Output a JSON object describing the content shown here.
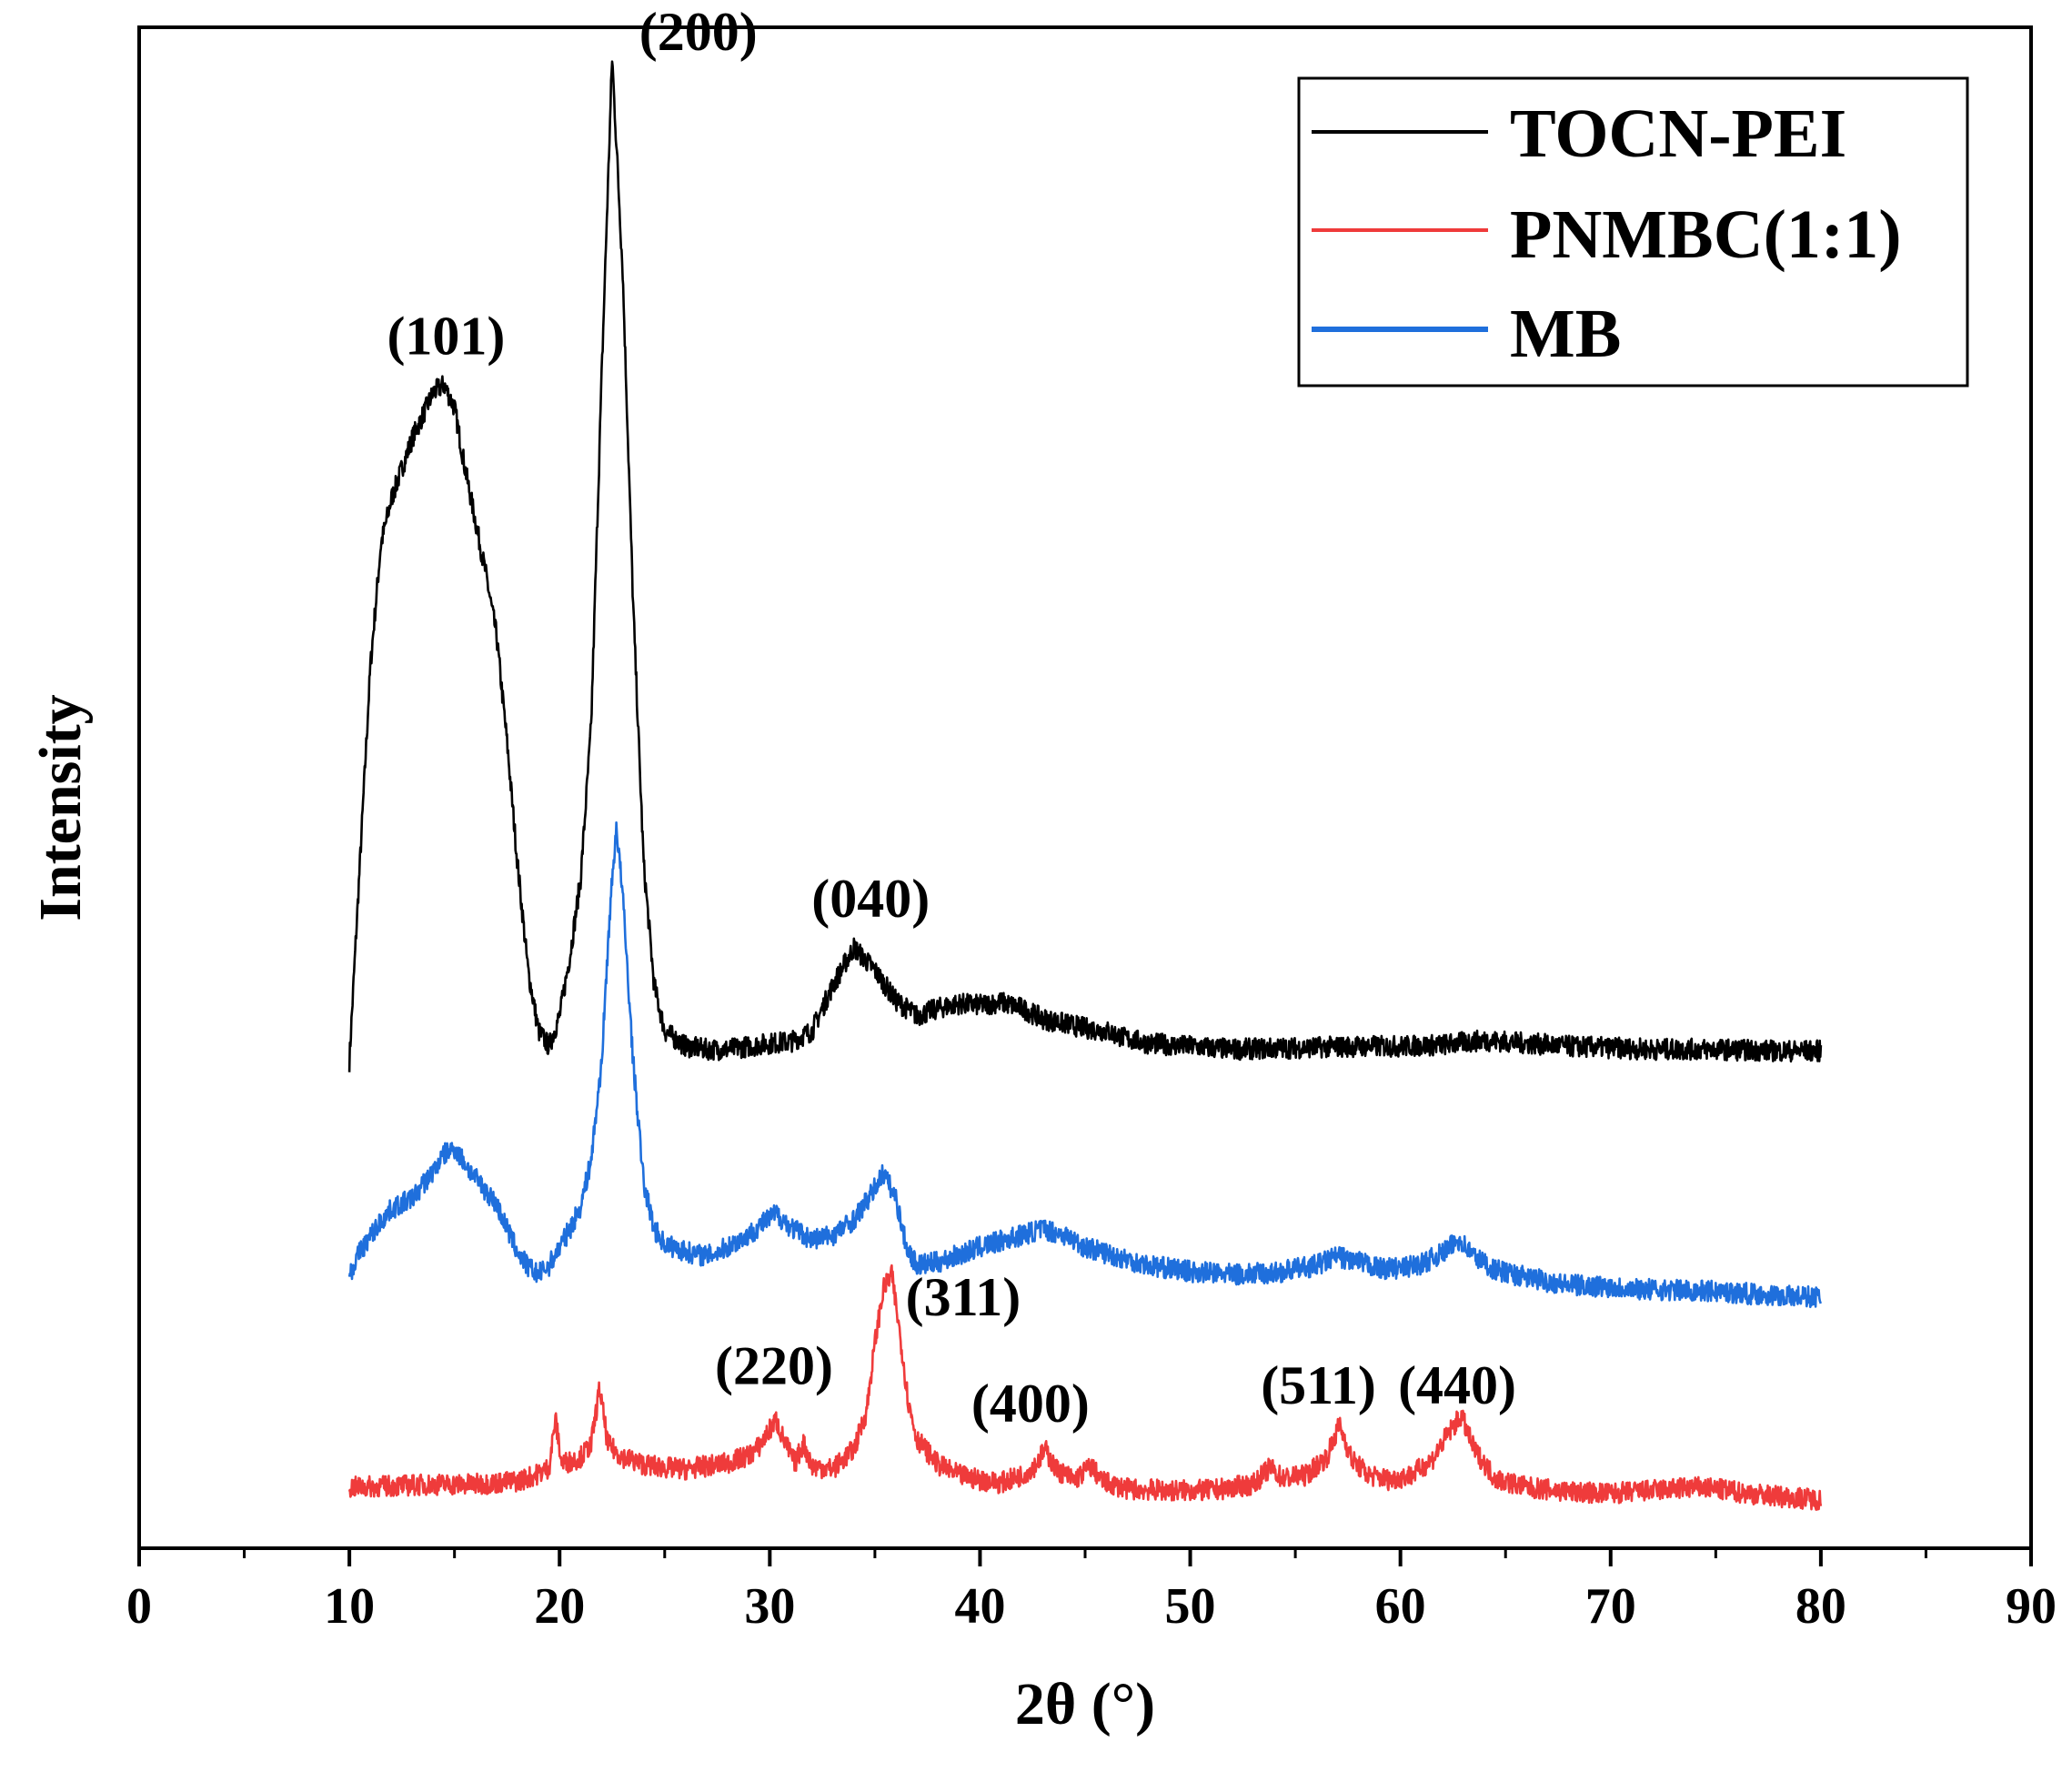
{
  "chart_data": {
    "type": "line",
    "title": "",
    "xlabel": "2θ (°)",
    "ylabel": "Intensity",
    "xlim": [
      0,
      90
    ],
    "ylim": [
      0,
      100
    ],
    "x_ticks": [
      0,
      10,
      20,
      30,
      40,
      50,
      60,
      70,
      80,
      90
    ],
    "x_tick_labels": [
      "0",
      "10",
      "20",
      "30",
      "40",
      "50",
      "60",
      "70",
      "80",
      "90"
    ],
    "y_tick_labels_shown": false,
    "legend_position": "top-right",
    "series": [
      {
        "name": "TOCN-PEI",
        "color": "#000000",
        "points": [
          [
            10,
            32
          ],
          [
            10.5,
            45
          ],
          [
            11,
            58
          ],
          [
            11.5,
            66
          ],
          [
            12,
            69
          ],
          [
            12.5,
            71
          ],
          [
            13,
            73
          ],
          [
            13.5,
            74.5
          ],
          [
            14,
            76
          ],
          [
            14.5,
            76.5
          ],
          [
            15,
            75
          ],
          [
            15.5,
            71
          ],
          [
            16,
            67.5
          ],
          [
            16.5,
            64
          ],
          [
            17,
            60
          ],
          [
            17.5,
            53
          ],
          [
            18,
            45
          ],
          [
            18.5,
            38
          ],
          [
            19,
            34
          ],
          [
            19.5,
            33
          ],
          [
            20,
            35
          ],
          [
            20.5,
            39
          ],
          [
            21,
            44
          ],
          [
            21.5,
            54
          ],
          [
            22,
            77
          ],
          [
            22.5,
            98
          ],
          [
            23,
            84
          ],
          [
            23.5,
            62
          ],
          [
            24,
            45
          ],
          [
            24.5,
            37
          ],
          [
            25,
            34
          ],
          [
            26,
            33
          ],
          [
            27,
            32.8
          ],
          [
            28,
            32.8
          ],
          [
            29,
            33
          ],
          [
            30,
            33.2
          ],
          [
            31,
            33.3
          ],
          [
            32,
            34
          ],
          [
            33,
            37
          ],
          [
            34,
            39.5
          ],
          [
            35,
            38
          ],
          [
            36,
            36
          ],
          [
            37,
            35
          ],
          [
            38,
            35.5
          ],
          [
            39,
            35.8
          ],
          [
            40,
            35.7
          ],
          [
            41,
            35.9
          ],
          [
            42,
            35.5
          ],
          [
            43,
            34.8
          ],
          [
            44,
            34.5
          ],
          [
            45,
            34.2
          ],
          [
            46,
            34
          ],
          [
            47,
            33.5
          ],
          [
            48,
            33.2
          ],
          [
            50,
            33
          ],
          [
            52,
            32.8
          ],
          [
            55,
            32.9
          ],
          [
            58,
            33
          ],
          [
            60,
            33
          ],
          [
            62,
            33.1
          ],
          [
            64,
            33.4
          ],
          [
            66,
            33.2
          ],
          [
            68,
            33
          ],
          [
            70,
            32.9
          ],
          [
            72,
            32.8
          ],
          [
            75,
            32.8
          ],
          [
            78,
            32.7
          ],
          [
            80,
            32.7
          ]
        ]
      },
      {
        "name": "PNMBC(1:1)",
        "color": "#ef3b3b",
        "points": [
          [
            10,
            4
          ],
          [
            12,
            4.1
          ],
          [
            14,
            4.2
          ],
          [
            16,
            4.2
          ],
          [
            18,
            4.4
          ],
          [
            19,
            4.9
          ],
          [
            19.5,
            5.3
          ],
          [
            19.8,
            8.5
          ],
          [
            20.1,
            5.6
          ],
          [
            20.5,
            5.7
          ],
          [
            21,
            6
          ],
          [
            21.5,
            6.8
          ],
          [
            21.9,
            10.5
          ],
          [
            22.3,
            6.8
          ],
          [
            23,
            6
          ],
          [
            24,
            5.5
          ],
          [
            25,
            5.3
          ],
          [
            26,
            5.2
          ],
          [
            27,
            5.4
          ],
          [
            28,
            5.6
          ],
          [
            29,
            6.1
          ],
          [
            29.5,
            6.7
          ],
          [
            30,
            7.8
          ],
          [
            30.3,
            8.4
          ],
          [
            30.7,
            7
          ],
          [
            31.2,
            5.6
          ],
          [
            31.6,
            6.9
          ],
          [
            32,
            5.4
          ],
          [
            33,
            5.2
          ],
          [
            34,
            6.5
          ],
          [
            34.6,
            9
          ],
          [
            35,
            13.5
          ],
          [
            35.4,
            17
          ],
          [
            35.8,
            18
          ],
          [
            36.2,
            14
          ],
          [
            36.6,
            9.5
          ],
          [
            37,
            7.2
          ],
          [
            38,
            5.5
          ],
          [
            39,
            4.8
          ],
          [
            40,
            4.5
          ],
          [
            41,
            4.3
          ],
          [
            42,
            4.8
          ],
          [
            42.6,
            5.4
          ],
          [
            43.1,
            6.5
          ],
          [
            43.6,
            5.2
          ],
          [
            44.5,
            4.5
          ],
          [
            45.3,
            5.4
          ],
          [
            45.8,
            4.4
          ],
          [
            47,
            3.9
          ],
          [
            49,
            3.8
          ],
          [
            51,
            3.8
          ],
          [
            53,
            4.2
          ],
          [
            53.8,
            5.3
          ],
          [
            54.4,
            4.6
          ],
          [
            55.5,
            4.8
          ],
          [
            56.5,
            6
          ],
          [
            57.1,
            8.1
          ],
          [
            57.7,
            5.8
          ],
          [
            58.5,
            4.8
          ],
          [
            59.5,
            4.5
          ],
          [
            60.5,
            4.8
          ],
          [
            61.5,
            5.8
          ],
          [
            62.3,
            7.6
          ],
          [
            62.9,
            8.7
          ],
          [
            63.5,
            6.5
          ],
          [
            64.5,
            4.6
          ],
          [
            66,
            4
          ],
          [
            68,
            3.7
          ],
          [
            70,
            3.6
          ],
          [
            72,
            3.8
          ],
          [
            74,
            4
          ],
          [
            75,
            3.9
          ],
          [
            76,
            3.7
          ],
          [
            78,
            3.4
          ],
          [
            80,
            3.2
          ]
        ]
      },
      {
        "name": "MB",
        "color": "#1f6fdc",
        "points": [
          [
            10,
            18
          ],
          [
            10.5,
            19.5
          ],
          [
            11,
            20.5
          ],
          [
            11.5,
            21.5
          ],
          [
            12,
            22.3
          ],
          [
            13,
            23
          ],
          [
            14,
            24.8
          ],
          [
            14.5,
            25.9
          ],
          [
            15,
            26.3
          ],
          [
            15.5,
            25.3
          ],
          [
            16,
            24.3
          ],
          [
            16.5,
            23.5
          ],
          [
            17,
            22.6
          ],
          [
            17.5,
            21
          ],
          [
            18,
            19.5
          ],
          [
            18.5,
            18.5
          ],
          [
            19,
            18
          ],
          [
            19.5,
            18.6
          ],
          [
            20,
            19.8
          ],
          [
            20.5,
            21
          ],
          [
            21,
            22.5
          ],
          [
            21.5,
            25.5
          ],
          [
            22,
            32
          ],
          [
            22.4,
            42
          ],
          [
            22.7,
            47.5
          ],
          [
            23,
            43
          ],
          [
            23.5,
            32
          ],
          [
            24,
            24
          ],
          [
            24.5,
            21
          ],
          [
            25,
            20
          ],
          [
            26,
            19.5
          ],
          [
            27,
            19.2
          ],
          [
            28,
            19.8
          ],
          [
            29,
            20.6
          ],
          [
            29.7,
            21.4
          ],
          [
            30.3,
            22
          ],
          [
            31,
            21.1
          ],
          [
            32,
            20.3
          ],
          [
            33,
            20.6
          ],
          [
            34,
            21.6
          ],
          [
            34.8,
            23.2
          ],
          [
            35.4,
            24.7
          ],
          [
            36,
            23
          ],
          [
            36.5,
            19.8
          ],
          [
            37,
            18.6
          ],
          [
            38,
            18.8
          ],
          [
            39,
            19.3
          ],
          [
            40,
            19.8
          ],
          [
            41,
            20.2
          ],
          [
            42,
            20.6
          ],
          [
            43,
            21
          ],
          [
            44,
            20.6
          ],
          [
            45,
            19.8
          ],
          [
            46,
            19.4
          ],
          [
            47,
            19
          ],
          [
            48,
            18.6
          ],
          [
            50,
            18.2
          ],
          [
            52,
            18
          ],
          [
            54,
            18.1
          ],
          [
            56,
            18.6
          ],
          [
            57,
            19.2
          ],
          [
            58,
            18.8
          ],
          [
            59,
            18.4
          ],
          [
            60,
            18.4
          ],
          [
            61,
            18.7
          ],
          [
            62,
            19.4
          ],
          [
            62.8,
            20.3
          ],
          [
            63.5,
            19.2
          ],
          [
            64.5,
            18.3
          ],
          [
            66,
            17.8
          ],
          [
            68,
            17.3
          ],
          [
            70,
            17.2
          ],
          [
            72,
            17
          ],
          [
            75,
            16.9
          ],
          [
            78,
            16.6
          ],
          [
            80,
            16.5
          ]
        ]
      }
    ],
    "annotations": [
      {
        "text": "(101)",
        "x": 14.6,
        "y": 78.5
      },
      {
        "text": "(200)",
        "x": 26.6,
        "y": 98.5
      },
      {
        "text": "(040)",
        "x": 34.8,
        "y": 41.5
      },
      {
        "text": "(220)",
        "x": 30.2,
        "y": 10.8
      },
      {
        "text": "(311)",
        "x": 39.2,
        "y": 15.3
      },
      {
        "text": "(400)",
        "x": 42.4,
        "y": 8.3
      },
      {
        "text": "(511)",
        "x": 56.1,
        "y": 9.5
      },
      {
        "text": "(440)",
        "x": 62.7,
        "y": 9.5
      }
    ]
  }
}
